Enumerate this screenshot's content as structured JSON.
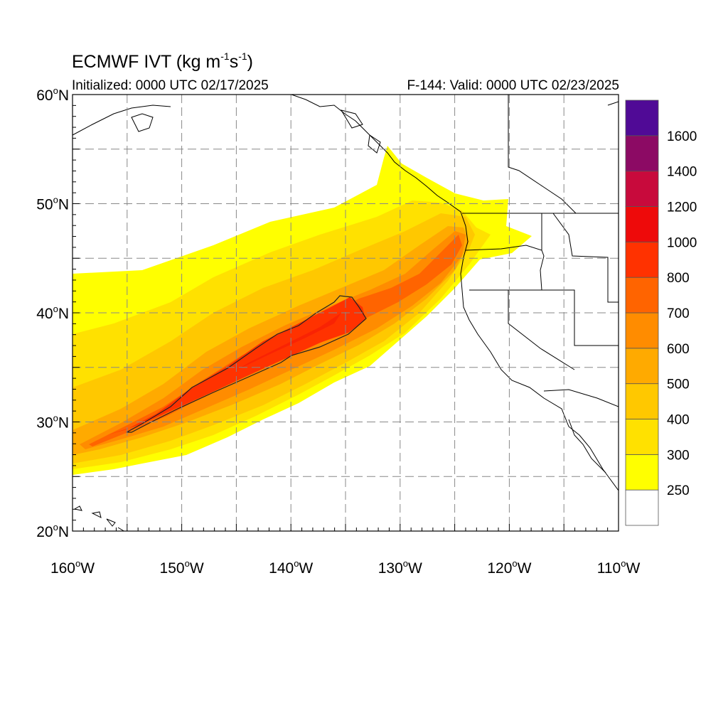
{
  "title": {
    "main": "ECMWF IVT (kg m",
    "exp1": "-1",
    "mid": "s",
    "exp2": "-1",
    "end": ")"
  },
  "initialized": "Initialized: 0000 UTC 02/17/2025",
  "valid": "F-144: Valid: 0000 UTC 02/23/2025",
  "map": {
    "lon_range": [
      -160,
      -110
    ],
    "lat_range": [
      20,
      60
    ],
    "lat_ticks": [
      {
        "value": 60,
        "label": "60",
        "suffix": "N"
      },
      {
        "value": 50,
        "label": "50",
        "suffix": "N"
      },
      {
        "value": 40,
        "label": "40",
        "suffix": "N"
      },
      {
        "value": 30,
        "label": "30",
        "suffix": "N"
      },
      {
        "value": 20,
        "label": "20",
        "suffix": "N"
      }
    ],
    "lon_ticks": [
      {
        "value": -160,
        "label": "160",
        "suffix": "W"
      },
      {
        "value": -150,
        "label": "150",
        "suffix": "W"
      },
      {
        "value": -140,
        "label": "140",
        "suffix": "W"
      },
      {
        "value": -130,
        "label": "130",
        "suffix": "W"
      },
      {
        "value": -120,
        "label": "120",
        "suffix": "W"
      },
      {
        "value": -110,
        "label": "110",
        "suffix": "W"
      }
    ],
    "grid_lat": [
      25,
      30,
      35,
      40,
      45,
      50,
      55
    ],
    "grid_lon": [
      -155,
      -150,
      -145,
      -140,
      -135,
      -130,
      -125,
      -120,
      -115
    ],
    "grid_style": "dashed"
  },
  "colorbar": {
    "levels": [
      "250",
      "300",
      "400",
      "500",
      "600",
      "700",
      "800",
      "1000",
      "1200",
      "1400",
      "1600"
    ],
    "colors": [
      "#ffffff",
      "#ffff00",
      "#ffe100",
      "#ffc800",
      "#ffaa00",
      "#ff8c00",
      "#ff6400",
      "#ff3200",
      "#ee0a0a",
      "#c80a3c",
      "#8c0a64",
      "#500a96"
    ]
  },
  "ivt_field": {
    "shading": "filled contours",
    "axis_color_max": "#ee0a0a"
  }
}
